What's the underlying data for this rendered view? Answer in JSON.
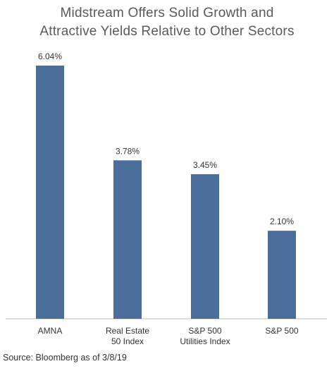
{
  "chart_data": {
    "type": "bar",
    "title": [
      "Midstream Offers Solid Growth and",
      "Attractive Yields Relative to Other Sectors"
    ],
    "categories": [
      [
        "AMNA"
      ],
      [
        "Real Estate",
        "50 Index"
      ],
      [
        "S&P 500",
        "Utilities Index"
      ],
      [
        "S&P 500"
      ]
    ],
    "values": [
      6.04,
      3.78,
      3.45,
      2.1
    ],
    "data_labels": [
      "6.04%",
      "3.78%",
      "3.45%",
      "2.10%"
    ],
    "unit": "%",
    "ylim": [
      0,
      6.04
    ],
    "bar_color": "#4a6d9c",
    "axis_color": "#bfbfbf",
    "grid": false,
    "legend": "none"
  },
  "source": "Source: Bloomberg as of 3/8/19"
}
